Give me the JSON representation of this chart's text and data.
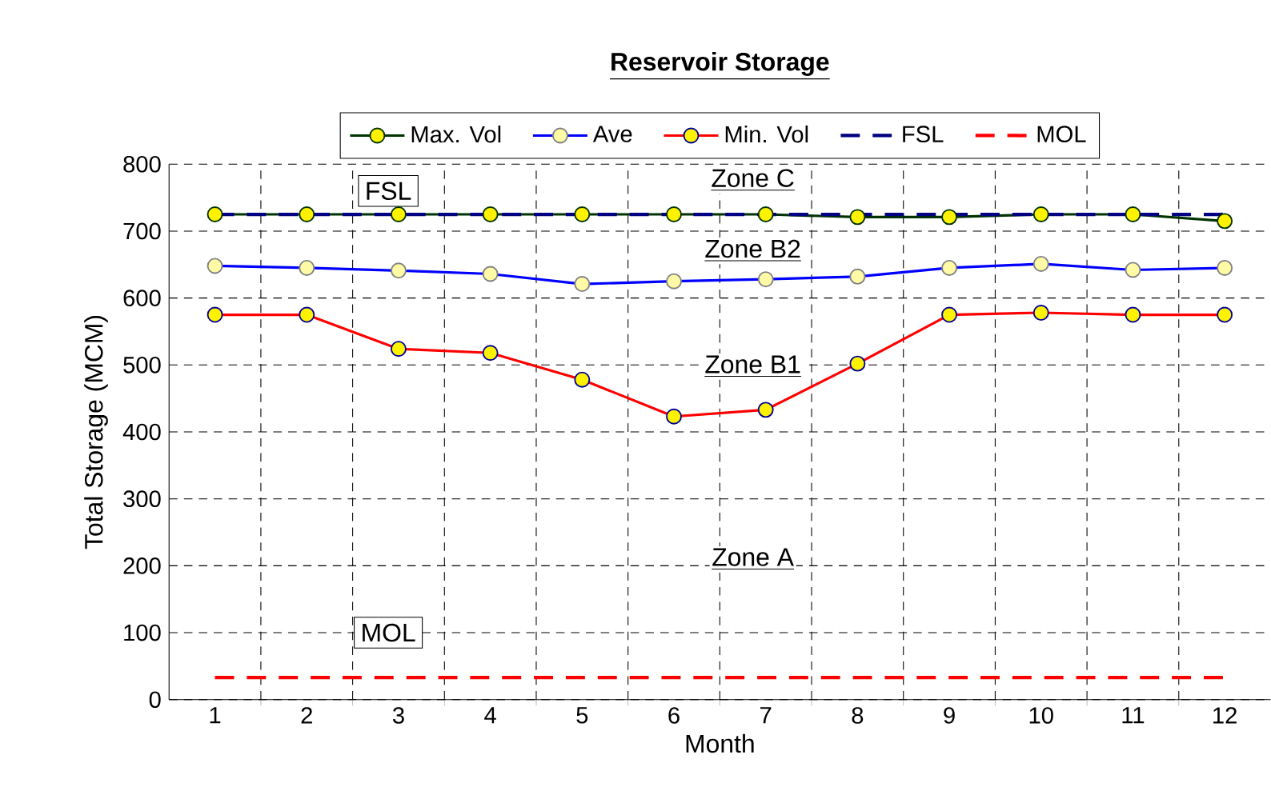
{
  "chart_data": {
    "type": "line",
    "title": "Reservoir Storage",
    "xlabel": "Month",
    "ylabel": "Total Storage (MCM)",
    "x": [
      1,
      2,
      3,
      4,
      5,
      6,
      7,
      8,
      9,
      10,
      11,
      12
    ],
    "xlim": [
      0.5,
      12.5
    ],
    "xticks": [
      1,
      2,
      3,
      4,
      5,
      6,
      7,
      8,
      9,
      10,
      11,
      12
    ],
    "ylim": [
      0,
      800
    ],
    "yticks": [
      0,
      100,
      200,
      300,
      400,
      500,
      600,
      700,
      800
    ],
    "grid": true,
    "legend": "top",
    "marker": "circle",
    "line_style": "solid",
    "series": [
      {
        "name": "Max. Vol",
        "color": "#003300",
        "values": [
          725,
          725,
          725,
          725,
          725,
          725,
          725,
          721,
          721,
          725,
          725,
          715
        ]
      },
      {
        "name": "Ave",
        "color": "#0000ff",
        "values": [
          648,
          645,
          641,
          636,
          621,
          625,
          628,
          632,
          645,
          651,
          642,
          645
        ]
      },
      {
        "name": "Min. Vol",
        "color": "#ff0000",
        "values": [
          575,
          575,
          524,
          518,
          478,
          423,
          433,
          502,
          575,
          578,
          575,
          575
        ]
      },
      {
        "name": "FSL",
        "color": "#000080",
        "marker": "none",
        "line_style": "dashed",
        "values": [
          725,
          725,
          725,
          725,
          725,
          725,
          725,
          725,
          725,
          725,
          725,
          725
        ]
      },
      {
        "name": "MOL",
        "color": "#ff0000",
        "marker": "none",
        "line_style": "dashed",
        "values": [
          33,
          33,
          33,
          33,
          33,
          33,
          33,
          33,
          33,
          33,
          33,
          33
        ]
      }
    ],
    "annotations": [
      "FSL",
      "Zone C",
      "Zone B2",
      "Zone B1",
      "Zone A",
      "MOL"
    ]
  }
}
